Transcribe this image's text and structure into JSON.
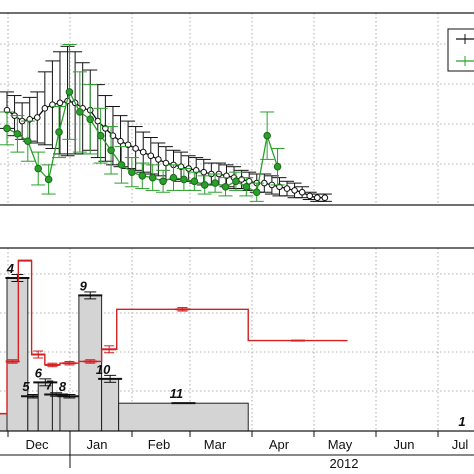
{
  "chart_data": [
    {
      "type": "line",
      "title": "",
      "xlabel": "",
      "ylabel": "",
      "grid": true,
      "legend": "top-right",
      "legend_entries": 2,
      "series": [
        {
          "color": "#111111",
          "marker": "open-circle",
          "x": [
            0,
            8,
            16,
            24,
            32,
            40,
            48,
            56,
            64,
            72,
            80,
            88,
            96,
            104,
            112,
            120,
            128,
            136,
            144,
            152,
            160,
            168,
            176,
            184,
            192,
            200,
            208,
            216,
            224,
            232,
            240,
            248,
            256,
            264,
            272,
            280,
            288,
            296,
            304,
            312,
            320,
            328,
            336
          ],
          "values": [
            0.52,
            0.49,
            0.46,
            0.47,
            0.48,
            0.53,
            0.55,
            0.56,
            0.57,
            0.56,
            0.53,
            0.52,
            0.46,
            0.42,
            0.38,
            0.35,
            0.33,
            0.31,
            0.29,
            0.27,
            0.25,
            0.23,
            0.22,
            0.21,
            0.2,
            0.19,
            0.18,
            0.17,
            0.17,
            0.16,
            0.15,
            0.14,
            0.13,
            0.12,
            0.12,
            0.11,
            0.1,
            0.09,
            0.08,
            0.07,
            0.05,
            0.04,
            0.04
          ],
          "errors": [
            0.1,
            0.11,
            0.1,
            0.12,
            0.14,
            0.2,
            0.24,
            0.28,
            0.3,
            0.28,
            0.25,
            0.22,
            0.2,
            0.18,
            0.16,
            0.14,
            0.13,
            0.12,
            0.11,
            0.1,
            0.09,
            0.09,
            0.08,
            0.08,
            0.07,
            0.07,
            0.07,
            0.06,
            0.06,
            0.06,
            0.06,
            0.05,
            0.05,
            0.05,
            0.05,
            0.05,
            0.05,
            0.04,
            0.04,
            0.03,
            0.02,
            0.02,
            0.02
          ]
        },
        {
          "color": "#2aa02a",
          "marker": "filled-circle",
          "x": [
            0,
            11,
            22,
            33,
            44,
            55,
            66,
            77,
            88,
            99,
            110,
            121,
            132,
            143,
            154,
            165,
            176,
            187,
            198,
            209,
            220,
            231,
            242,
            253,
            264,
            275,
            286
          ],
          "values": [
            0.42,
            0.39,
            0.35,
            0.2,
            0.14,
            0.4,
            0.62,
            0.51,
            0.47,
            0.38,
            0.3,
            0.22,
            0.18,
            0.16,
            0.15,
            0.13,
            0.15,
            0.14,
            0.13,
            0.11,
            0.12,
            0.1,
            0.13,
            0.1,
            0.07,
            0.38,
            0.21
          ],
          "errors": [
            0.09,
            0.1,
            0.11,
            0.09,
            0.08,
            0.14,
            0.26,
            0.22,
            0.19,
            0.15,
            0.13,
            0.1,
            0.08,
            0.07,
            0.07,
            0.06,
            0.07,
            0.06,
            0.05,
            0.05,
            0.05,
            0.05,
            0.05,
            0.05,
            0.05,
            0.13,
            0.1
          ]
        }
      ]
    },
    {
      "type": "bar",
      "title": "",
      "xlabel": "",
      "ylabel": "",
      "grid": true,
      "month_labels": [
        "Dec",
        "Jan",
        "Feb",
        "Mar",
        "Apr",
        "May",
        "Jun",
        "Jul"
      ],
      "year_label": "2012",
      "periods": [
        {
          "label": "",
          "start": -40,
          "end": 0,
          "value": 0.1,
          "error": 0.0
        },
        {
          "label": "4",
          "start": 0,
          "end": 22,
          "value": 0.88,
          "error": 0.02
        },
        {
          "label": "5",
          "start": 22,
          "end": 33,
          "value": 0.2,
          "error": 0.01
        },
        {
          "label": "6",
          "start": 33,
          "end": 48,
          "value": 0.28,
          "error": 0.02
        },
        {
          "label": "7",
          "start": 48,
          "end": 56,
          "value": 0.21,
          "error": 0.01
        },
        {
          "label": "8",
          "start": 56,
          "end": 76,
          "value": 0.2,
          "error": 0.01
        },
        {
          "label": "9",
          "start": 76,
          "end": 100,
          "value": 0.78,
          "error": 0.02
        },
        {
          "label": "10",
          "start": 100,
          "end": 118,
          "value": 0.3,
          "error": 0.02
        },
        {
          "label": "11",
          "start": 118,
          "end": 255,
          "value": 0.16,
          "error": 0.0
        },
        {
          "label": "1",
          "start": 255,
          "end": 360,
          "value": 0.0,
          "error": 0.0
        }
      ],
      "step_series": {
        "color": "#d42020",
        "segments": [
          {
            "start": -40,
            "end": 0,
            "value": 0.1,
            "error": 0.0
          },
          {
            "start": 0,
            "end": 12,
            "value": 0.4,
            "error": 0.01
          },
          {
            "start": 12,
            "end": 26,
            "value": 0.98,
            "error": 0.0
          },
          {
            "start": 26,
            "end": 40,
            "value": 0.44,
            "error": 0.02
          },
          {
            "start": 40,
            "end": 56,
            "value": 0.38,
            "error": 0.01
          },
          {
            "start": 56,
            "end": 76,
            "value": 0.39,
            "error": 0.01
          },
          {
            "start": 76,
            "end": 100,
            "value": 0.4,
            "error": 0.01
          },
          {
            "start": 100,
            "end": 116,
            "value": 0.47,
            "error": 0.02
          },
          {
            "start": 116,
            "end": 255,
            "value": 0.7,
            "error": 0.01
          },
          {
            "start": 255,
            "end": 360,
            "value": 0.52,
            "error": 0.0
          }
        ]
      }
    }
  ]
}
